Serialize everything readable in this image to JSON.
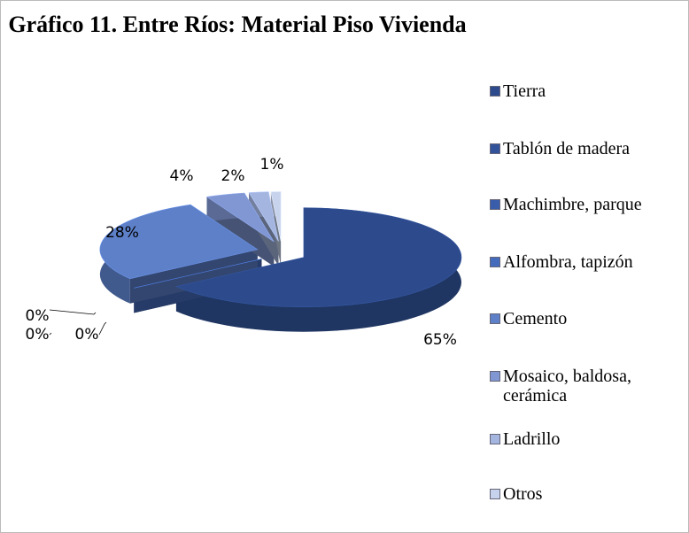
{
  "chart_data": {
    "type": "pie3d",
    "title": "Gráfico 11. Entre Ríos: Material Piso Vivienda",
    "categories": [
      "Tierra",
      "Tablón de madera",
      "Machimbre, parque",
      "Alfombra, tapizón",
      "Cemento",
      "Mosaico, baldosa, cerámica",
      "Ladrillo",
      "Otros"
    ],
    "values": [
      65,
      0,
      0,
      0,
      28,
      4,
      2,
      1
    ],
    "value_labels": [
      "65%",
      "0%",
      "0%",
      "0%",
      "28%",
      "4%",
      "2%",
      "1%"
    ],
    "colors": [
      "#2d4b8c",
      "#32529a",
      "#3a5dab",
      "#456bbd",
      "#5d80c9",
      "#8097d3",
      "#a4b5e0",
      "#c7d2ec"
    ],
    "legend": "right"
  }
}
